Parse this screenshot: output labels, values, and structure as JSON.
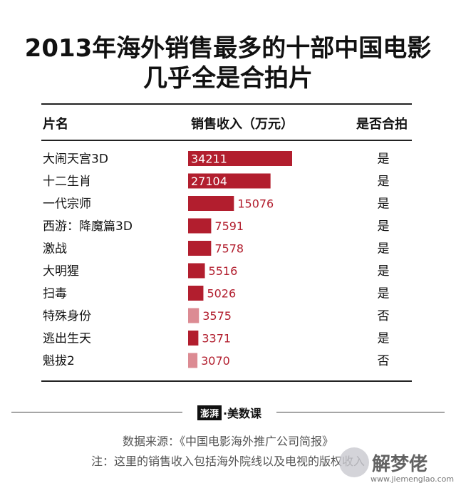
{
  "header": {
    "title_line1": "2013年海外销售最多的十部中国电影",
    "title_line2": "几乎全是合拍片"
  },
  "columns": {
    "name": "片名",
    "revenue": "销售收入（万元）",
    "coproduction": "是否合拍"
  },
  "chart_data": {
    "type": "bar",
    "orientation": "horizontal",
    "categories": [
      "大闹天宫3D",
      "十二生肖",
      "一代宗师",
      "西游：降魔篇3D",
      "激战",
      "大明猩",
      "扫毒",
      "特殊身份",
      "逃出生天",
      "魁拔2"
    ],
    "values": [
      34211,
      27104,
      15076,
      7591,
      7578,
      5516,
      5026,
      3575,
      3371,
      3070
    ],
    "coproduction": [
      "是",
      "是",
      "是",
      "是",
      "是",
      "是",
      "是",
      "否",
      "是",
      "否"
    ],
    "ylabel": "销售收入（万元）",
    "colors": {
      "coproduction": "#b21e2e",
      "non_coproduction": "#dc8b93"
    }
  },
  "footer": {
    "logo_mark": "澎湃",
    "logo_text": "·美数课",
    "source": "数据来源：《中国电影海外推广公司简报》",
    "note": "注：这里的销售收入包括海外院线以及电视的版权收入"
  },
  "watermark": {
    "text": "解梦佬",
    "url": "www.jiemenglao.com"
  }
}
